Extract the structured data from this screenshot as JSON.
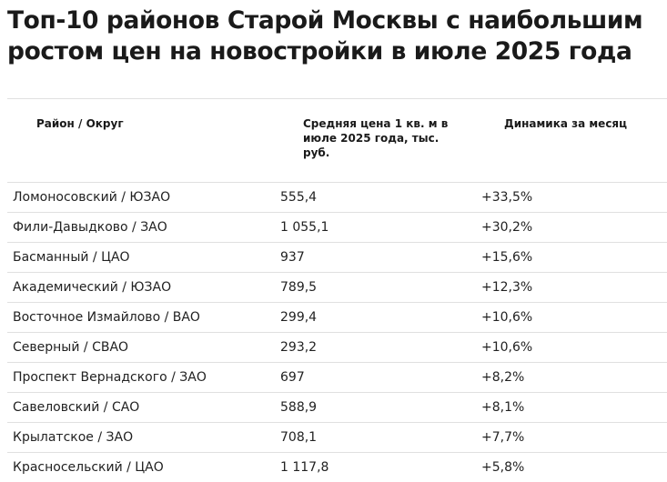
{
  "title": "Топ-10 районов Старой Москвы с наибольшим ростом цен на новостройки в июле 2025 года",
  "table": {
    "headers": {
      "district": "Район / Округ",
      "price": "Средняя цена 1 кв. м в июле 2025 года, тыс. руб.",
      "dynamics": "Динамика за месяц"
    },
    "rows": [
      {
        "district": "Ломоносовский / ЮЗАО",
        "price": "555,4",
        "dynamics": "+33,5%"
      },
      {
        "district": "Фили-Давыдково / ЗАО",
        "price": "1 055,1",
        "dynamics": "+30,2%"
      },
      {
        "district": "Басманный / ЦАО",
        "price": "937",
        "dynamics": "+15,6%"
      },
      {
        "district": "Академический / ЮЗАО",
        "price": "789,5",
        "dynamics": "+12,3%"
      },
      {
        "district": "Восточное Измайлово / ВАО",
        "price": "299,4",
        "dynamics": "+10,6%"
      },
      {
        "district": "Северный / СВАО",
        "price": "293,2",
        "dynamics": "+10,6%"
      },
      {
        "district": "Проспект Вернадского / ЗАО",
        "price": "697",
        "dynamics": "+8,2%"
      },
      {
        "district": "Савеловский / САО",
        "price": "588,9",
        "dynamics": "+8,1%"
      },
      {
        "district": "Крылатское / ЗАО",
        "price": "708,1",
        "dynamics": "+7,7%"
      },
      {
        "district": "Красносельский / ЦАО",
        "price": "1 117,8",
        "dynamics": "+5,8%"
      }
    ]
  }
}
